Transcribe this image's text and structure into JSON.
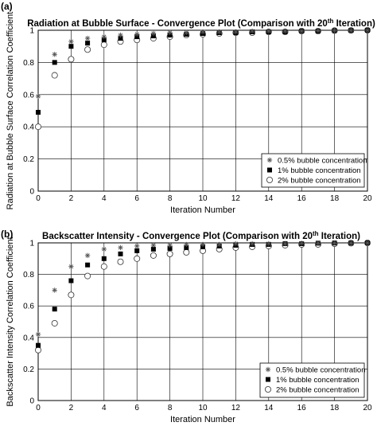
{
  "chart_data": [
    {
      "type": "scatter",
      "panel_label": "(a)",
      "title_main": "Radiation at Bubble Surface - Convergence Plot (Comparison with 20",
      "title_sup": "th",
      "title_end": " Iteration)",
      "xlabel": "Iteration Number",
      "ylabel": "Radiation at Bubble Surface Correlation Coefficient",
      "xlim": [
        0,
        20
      ],
      "ylim": [
        0,
        1
      ],
      "xticks": [
        "0",
        "2",
        "4",
        "6",
        "8",
        "10",
        "12",
        "14",
        "16",
        "18",
        "20"
      ],
      "yticks": [
        "0",
        "0.2",
        "0.4",
        "0.6",
        "0.8",
        "1"
      ],
      "grid": true,
      "legend_position": "bottom-right",
      "x": [
        0,
        1,
        2,
        3,
        4,
        5,
        6,
        7,
        8,
        9,
        10,
        11,
        12,
        13,
        14,
        15,
        16,
        17,
        18,
        19,
        20
      ],
      "series": [
        {
          "name": "0.5% bubble concentration",
          "marker": "asterisk",
          "values": [
            0.59,
            0.85,
            0.93,
            0.95,
            0.96,
            0.97,
            0.975,
            0.98,
            0.985,
            0.985,
            0.99,
            0.99,
            0.99,
            0.995,
            0.995,
            0.995,
            0.995,
            0.998,
            0.999,
            0.999,
            1.0
          ]
        },
        {
          "name": "1% bubble concentration",
          "marker": "filled-square",
          "values": [
            0.49,
            0.8,
            0.9,
            0.92,
            0.94,
            0.95,
            0.96,
            0.965,
            0.97,
            0.975,
            0.98,
            0.985,
            0.985,
            0.99,
            0.99,
            0.99,
            0.995,
            0.995,
            0.998,
            0.999,
            1.0
          ]
        },
        {
          "name": "2% bubble concentration",
          "marker": "open-circle",
          "values": [
            0.4,
            0.72,
            0.82,
            0.88,
            0.91,
            0.93,
            0.94,
            0.95,
            0.96,
            0.97,
            0.975,
            0.98,
            0.985,
            0.985,
            0.99,
            0.99,
            0.995,
            0.995,
            0.998,
            0.999,
            1.0
          ]
        }
      ]
    },
    {
      "type": "scatter",
      "panel_label": "(b)",
      "title_main": "Backscatter Intensity - Convergence Plot (Comparison with 20",
      "title_sup": "th",
      "title_end": " Iteration)",
      "xlabel": "Iteration Number",
      "ylabel": "Backscatter Intensity Correlation Coefficient",
      "xlim": [
        0,
        20
      ],
      "ylim": [
        0,
        1
      ],
      "xticks": [
        "0",
        "2",
        "4",
        "6",
        "8",
        "10",
        "12",
        "14",
        "16",
        "18",
        "20"
      ],
      "yticks": [
        "0",
        "0.2",
        "0.4",
        "0.6",
        "0.8",
        "1"
      ],
      "grid": true,
      "legend_position": "bottom-right",
      "x": [
        0,
        1,
        2,
        3,
        4,
        5,
        6,
        7,
        8,
        9,
        10,
        11,
        12,
        13,
        14,
        15,
        16,
        17,
        18,
        19,
        20
      ],
      "series": [
        {
          "name": "0.5% bubble concentration",
          "marker": "asterisk",
          "values": [
            0.42,
            0.7,
            0.85,
            0.92,
            0.96,
            0.97,
            0.98,
            0.985,
            0.985,
            0.99,
            0.99,
            0.99,
            0.995,
            0.995,
            0.995,
            0.995,
            0.998,
            0.998,
            0.999,
            0.999,
            1.0
          ]
        },
        {
          "name": "1% bubble concentration",
          "marker": "filled-square",
          "values": [
            0.35,
            0.58,
            0.76,
            0.86,
            0.9,
            0.93,
            0.95,
            0.96,
            0.965,
            0.97,
            0.975,
            0.98,
            0.985,
            0.99,
            0.99,
            0.995,
            0.995,
            0.998,
            0.999,
            0.999,
            1.0
          ]
        },
        {
          "name": "2% bubble concentration",
          "marker": "open-circle",
          "values": [
            0.32,
            0.49,
            0.67,
            0.79,
            0.85,
            0.88,
            0.9,
            0.92,
            0.93,
            0.94,
            0.95,
            0.96,
            0.97,
            0.975,
            0.98,
            0.985,
            0.99,
            0.99,
            0.995,
            0.998,
            1.0
          ]
        }
      ]
    }
  ]
}
